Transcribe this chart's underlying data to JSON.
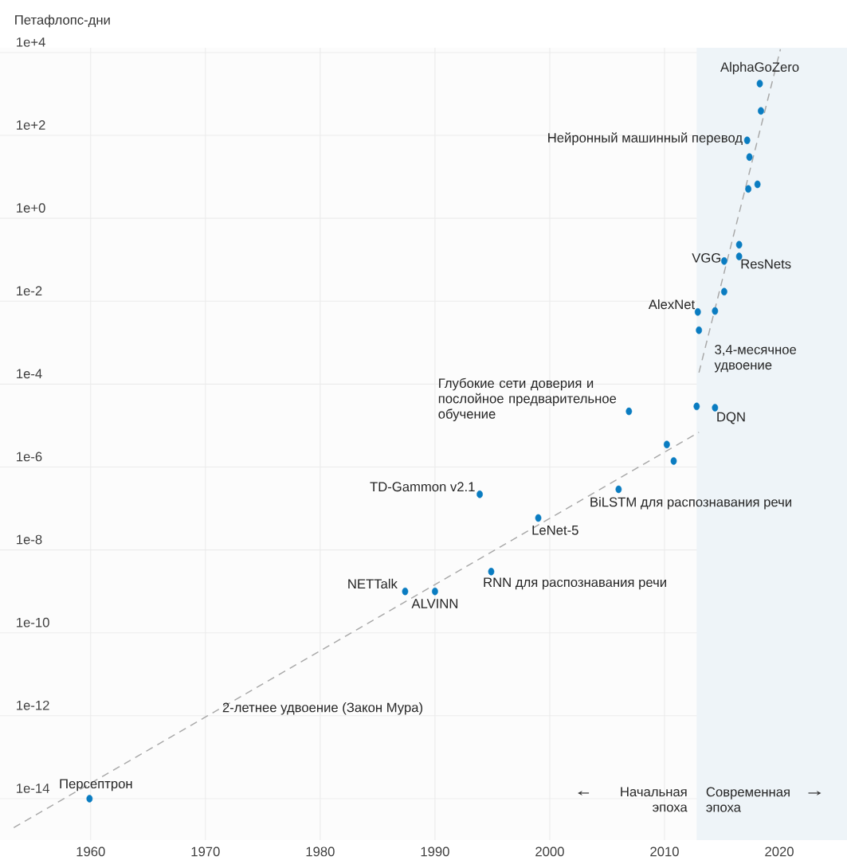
{
  "chart_data": {
    "type": "scatter",
    "ylabel": "Петафлопс-дни",
    "log": "y",
    "grid": true,
    "xlim": [
      1952.1,
      2025.9
    ],
    "ylim": [
      1e-15,
      13000.0
    ],
    "xticks": [
      1960,
      1970,
      1980,
      1990,
      2000,
      2010,
      2020
    ],
    "yticks": [
      {
        "value": 1e-14,
        "label": "1e-14"
      },
      {
        "value": 1e-12,
        "label": "1e-12"
      },
      {
        "value": 1e-10,
        "label": "1e-10"
      },
      {
        "value": 1e-08,
        "label": "1e-8"
      },
      {
        "value": 1e-06,
        "label": "1e-6"
      },
      {
        "value": 0.0001,
        "label": "1e-4"
      },
      {
        "value": 0.01,
        "label": "1e-2"
      },
      {
        "value": 1,
        "label": "1e+0"
      },
      {
        "value": 100,
        "label": "1e+2"
      },
      {
        "value": 10000,
        "label": "1e+4"
      }
    ],
    "bands": [
      {
        "axis": "x",
        "from": 2012.8,
        "to": 2025.9,
        "label": "Современная эпоха",
        "color": "#eef4f8"
      }
    ],
    "series": [
      {
        "color": "#0a7cc1",
        "marker": "circle",
        "x": [
          1959.9,
          1987.4,
          1990.0,
          1994.9,
          1993.9,
          1999.0,
          2006.0,
          2006.9,
          2010.2,
          2010.8,
          2012.8,
          2014.4,
          2013.0,
          2012.9,
          2014.4,
          2015.2,
          2015.2,
          2016.5,
          2016.5,
          2017.3,
          2018.1,
          2017.4,
          2017.2,
          2018.4,
          2018.3
        ],
        "values": [
          1e-14,
          1e-09,
          1e-09,
          3e-09,
          2.2e-07,
          5.9e-08,
          2.9e-07,
          2.2e-05,
          3.5e-06,
          1.4e-06,
          2.9e-05,
          2.7e-05,
          0.002,
          0.0055,
          0.0058,
          0.017,
          0.093,
          0.12,
          0.23,
          5.1,
          6.6,
          30,
          76,
          390,
          1780
        ]
      },
      {
        "type": "line",
        "color": "#a8a8a8",
        "line_style": "dashed",
        "marker": "none",
        "x": [
          1953.3,
          2013.0
        ],
        "values": [
          2e-15,
          6.9e-06
        ]
      },
      {
        "type": "line",
        "color": "#a8a8a8",
        "line_style": "dashed",
        "marker": "none",
        "x": [
          2013.0,
          2020.1
        ],
        "values": [
          0.00019,
          12000.0
        ]
      }
    ],
    "annotations": [
      {
        "text": "Персептрон",
        "x": 1959.9,
        "y": 1e-14
      },
      {
        "text": "NETTalk",
        "x": 1987.4,
        "y": 1e-09
      },
      {
        "text": "ALVINN",
        "x": 1990.0,
        "y": 1e-09
      },
      {
        "text": "RNN для распознавания речи",
        "x": 1994.9,
        "y": 3e-09
      },
      {
        "text": "TD-Gammon v2.1",
        "x": 1993.9,
        "y": 2.2e-07
      },
      {
        "text": "LeNet-5",
        "x": 1999.0,
        "y": 5.9e-08
      },
      {
        "text": "BiLSTM для распознавания речи",
        "x": 2006.0,
        "y": 2.9e-07
      },
      {
        "text": "Глубокие сети доверия и послойное предварительное обучение",
        "x": 2006.9,
        "y": 2.2e-05
      },
      {
        "text": "DQN",
        "x": 2014.4,
        "y": 2.7e-05
      },
      {
        "text": "AlexNet",
        "x": 2012.9,
        "y": 0.0055
      },
      {
        "text": "3,4-месячное удвоение",
        "x": 2013.4,
        "y": 0.00054
      },
      {
        "text": "VGG",
        "x": 2015.2,
        "y": 0.093
      },
      {
        "text": "ResNets",
        "x": 2016.5,
        "y": 0.12
      },
      {
        "text": "Нейронный машинный перевод",
        "x": 2017.2,
        "y": 76
      },
      {
        "text": "AlphaGoZero",
        "x": 2018.3,
        "y": 1780
      },
      "2-летнее удвоение (Закон Мура)",
      "Начальная эпоха"
    ]
  }
}
